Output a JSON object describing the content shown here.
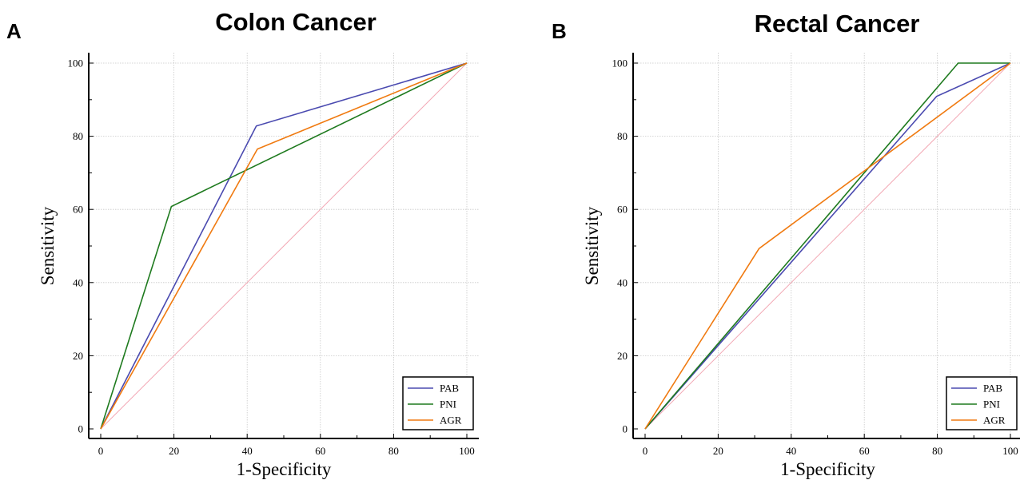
{
  "panels": [
    {
      "letter": "A",
      "title": "Colon Cancer"
    },
    {
      "letter": "B",
      "title": "Rectal Cancer"
    }
  ],
  "chart_data": [
    {
      "type": "line",
      "title": "Colon Cancer",
      "xlabel": "1-Specificity",
      "ylabel": "Sensitivity",
      "xlim": [
        0,
        100
      ],
      "ylim": [
        0,
        100
      ],
      "xticks": [
        0,
        20,
        40,
        60,
        80,
        100
      ],
      "yticks": [
        0,
        20,
        40,
        60,
        80,
        100
      ],
      "grid": true,
      "legend_position": "bottom-right",
      "reference_line": {
        "x": [
          0,
          100
        ],
        "y": [
          0,
          100
        ],
        "color": "#f2a8b4"
      },
      "series": [
        {
          "name": "PAB",
          "color": "#4a4ab0",
          "x": [
            0,
            42.5,
            100
          ],
          "y": [
            0,
            82.8,
            100
          ]
        },
        {
          "name": "PNI",
          "color": "#1e7a1e",
          "x": [
            0,
            19.3,
            100
          ],
          "y": [
            0,
            60.8,
            100
          ]
        },
        {
          "name": "AGR",
          "color": "#f07a10",
          "x": [
            0,
            42.8,
            100
          ],
          "y": [
            0,
            76.5,
            100
          ]
        }
      ]
    },
    {
      "type": "line",
      "title": "Rectal Cancer",
      "xlabel": "1-Specificity",
      "ylabel": "Sensitivity",
      "xlim": [
        0,
        100
      ],
      "ylim": [
        0,
        100
      ],
      "xticks": [
        0,
        20,
        40,
        60,
        80,
        100
      ],
      "yticks": [
        0,
        20,
        40,
        60,
        80,
        100
      ],
      "grid": true,
      "legend_position": "bottom-right",
      "reference_line": {
        "x": [
          0,
          100
        ],
        "y": [
          0,
          100
        ],
        "color": "#f2a8b4"
      },
      "series": [
        {
          "name": "PAB",
          "color": "#4a4ab0",
          "x": [
            0,
            79.8,
            100
          ],
          "y": [
            0,
            90.9,
            100
          ]
        },
        {
          "name": "PNI",
          "color": "#1e7a1e",
          "x": [
            0,
            85.7,
            100
          ],
          "y": [
            0,
            100,
            100
          ]
        },
        {
          "name": "AGR",
          "color": "#f07a10",
          "x": [
            0,
            31.2,
            100
          ],
          "y": [
            0,
            49.3,
            100
          ]
        }
      ]
    }
  ]
}
